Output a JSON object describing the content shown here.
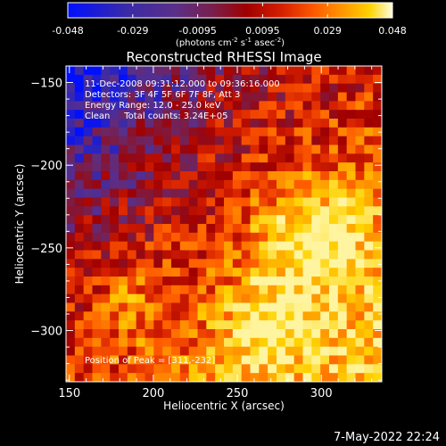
{
  "colorbar": {
    "ticks": [
      "-0.048",
      "-0.029",
      "-0.0095",
      "0.0095",
      "0.029",
      "0.048"
    ],
    "units_label": "(photons cm",
    "units_exp1": "-2",
    "units_mid": " s",
    "units_exp2": "-1",
    "units_end": " asec",
    "units_exp3": "-2",
    "units_close": ")"
  },
  "chart_data": {
    "type": "heatmap",
    "title": "Reconstructed RHESSI Image",
    "xlabel": "Heliocentric X (arcsec)",
    "ylabel": "Heliocentric Y (arcsec)",
    "xlim": [
      148,
      336
    ],
    "ylim": [
      -331,
      -140
    ],
    "xticks": [
      150,
      200,
      250,
      300
    ],
    "yticks": [
      -150,
      -200,
      -250,
      -300
    ],
    "color_range": [
      -0.048,
      0.048
    ],
    "colormap": [
      "#0010ff",
      "#3a2aa8",
      "#5a2f8a",
      "#7a1e4a",
      "#a00000",
      "#d62000",
      "#ff5a00",
      "#ff9a00",
      "#ffd200",
      "#fff5a0"
    ],
    "peak_position": [
      311,
      -232
    ],
    "annotations": [
      "11-Dec-2008 09:31:12.000 to 09:36:16.000",
      "Detectors: 3F 4F 5F 6F 7F 8F, Att 3",
      "Energy Range: 12.0 - 25.0 keV",
      "Clean     Total counts: 3.24E+05",
      "Position of Peak = [311,-232]"
    ],
    "grid": false,
    "legend": "colorbar-top"
  },
  "footer": {
    "date": "7-May-2022 22:24"
  }
}
